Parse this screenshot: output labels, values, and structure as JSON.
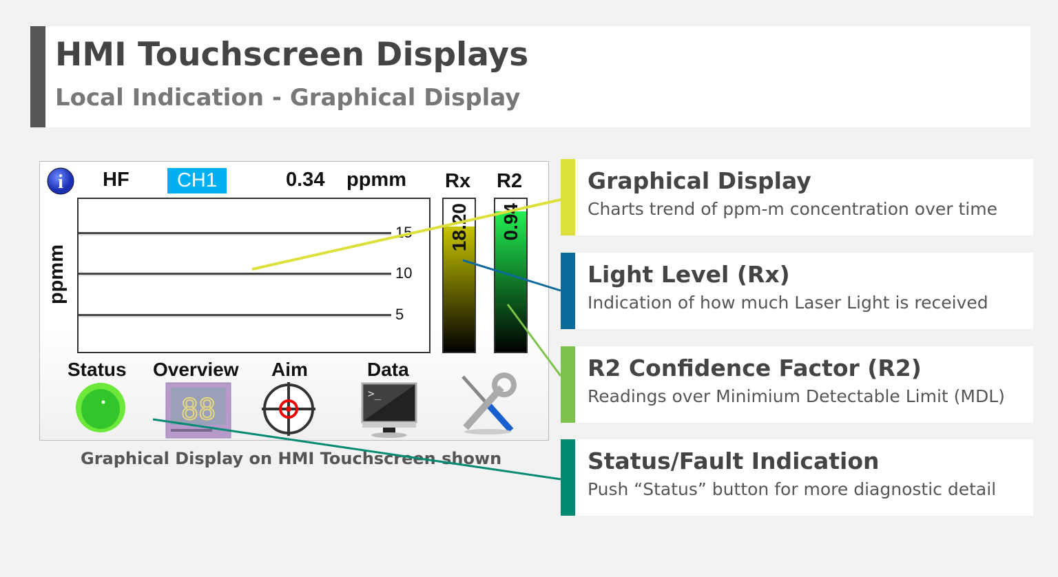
{
  "header": {
    "title": "HMI Touchscreen Displays",
    "subtitle": "Local Indication - Graphical Display"
  },
  "hmi": {
    "gas": "HF",
    "channel": "CH1",
    "reading": "0.34",
    "unit": "ppmm",
    "rx_label": "Rx",
    "r2_label": "R2",
    "rx_value": "18.20",
    "r2_value": "0.94",
    "rx_level_percent": 82,
    "r2_level_percent": 92,
    "y_axis_label": "ppmm",
    "ticks": [
      "15",
      "10",
      "5"
    ],
    "buttons": [
      {
        "label": "Status"
      },
      {
        "label": "Overview"
      },
      {
        "label": "Aim"
      },
      {
        "label": "Data"
      }
    ],
    "channel_color": "#00b0f0"
  },
  "caption": "Graphical Display on HMI Touchscreen shown",
  "callouts": [
    {
      "title": "Graphical Display",
      "desc": "Charts trend of ppm-m concentration over time",
      "color": "#dde03a"
    },
    {
      "title": "Light Level (Rx)",
      "desc": "Indication of how much Laser Light is received",
      "color": "#0b6a9a"
    },
    {
      "title": "R2 Confidence Factor (R2)",
      "desc": "Readings over Minimium Detectable Limit (MDL)",
      "color": "#7dc24a"
    },
    {
      "title": "Status/Fault Indication",
      "desc": "Push “Status” button for more diagnostic detail",
      "color": "#008a72"
    }
  ]
}
